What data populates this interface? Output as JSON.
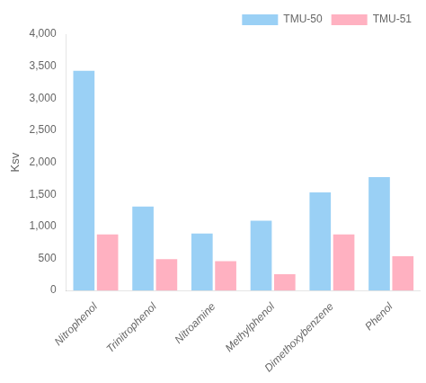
{
  "chart_data": {
    "type": "bar",
    "ylabel": "Ksv",
    "categories": [
      "Nitrophenol",
      "Trinitrophenol",
      "Nitroamine",
      "Methylphenol",
      "Dimethoxybenzene",
      "Phenol"
    ],
    "series": [
      {
        "name": "TMU-50",
        "values": [
          3430,
          1310,
          890,
          1090,
          1530,
          1770
        ]
      },
      {
        "name": "TMU-51",
        "values": [
          875,
          490,
          460,
          255,
          875,
          535
        ]
      }
    ],
    "ylim": [
      0,
      4000
    ],
    "yticks": [
      0,
      500,
      1000,
      1500,
      2000,
      2500,
      3000,
      3500,
      4000
    ],
    "grid": false,
    "legend": "upper right"
  }
}
